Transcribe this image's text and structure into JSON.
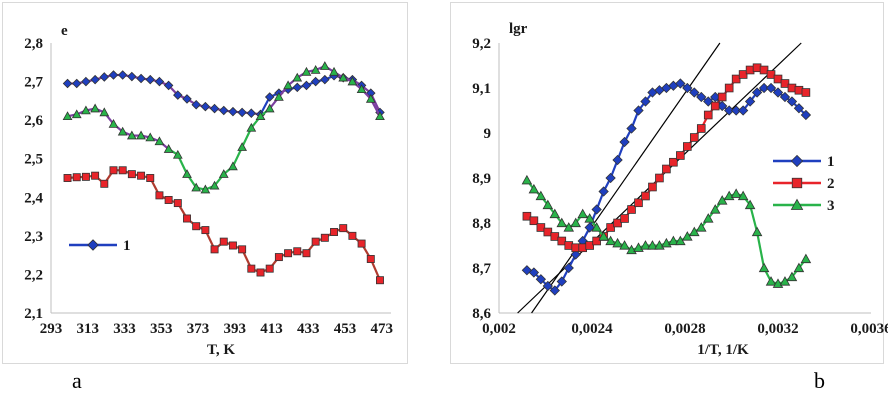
{
  "panels": {
    "a": {
      "letter": "a"
    },
    "b": {
      "letter": "b"
    }
  },
  "colors": {
    "blue": "#1f3fbf",
    "red": "#e8242a",
    "green": "#29b34a",
    "dark_red": "#b03a2e"
  },
  "chart_data": [
    {
      "id": "a",
      "type": "line",
      "ylabel": "e",
      "xlabel": "T, K",
      "xlim": [
        293,
        478
      ],
      "ylim": [
        2.1,
        2.8
      ],
      "x_ticks": [
        293,
        313,
        333,
        353,
        373,
        393,
        413,
        433,
        453,
        473
      ],
      "y_ticks": [
        2.1,
        2.2,
        2.3,
        2.4,
        2.5,
        2.6,
        2.7,
        2.8
      ],
      "x_tick_labels": [
        "293",
        "313",
        "333",
        "353",
        "373",
        "393",
        "413",
        "433",
        "453",
        "473"
      ],
      "y_tick_labels": [
        "2,1",
        "2,2",
        "2,3",
        "2,4",
        "2,5",
        "2,6",
        "2,7",
        "2,8"
      ],
      "grid": false,
      "legend": {
        "position": "lower-left",
        "entries": [
          "1"
        ]
      },
      "series": [
        {
          "name": "1",
          "marker": "diamond",
          "color": "#1f3fbf",
          "line_color": "#7b3fa0",
          "rise_color": "#1f3fbf",
          "x": [
            302,
            307,
            312,
            317,
            322,
            327,
            332,
            337,
            342,
            347,
            352,
            357,
            362,
            367,
            372,
            377,
            382,
            387,
            392,
            397,
            402,
            407,
            412,
            417,
            422,
            427,
            432,
            437,
            442,
            447,
            452,
            457,
            462,
            467,
            472
          ],
          "y": [
            2.695,
            2.695,
            2.7,
            2.705,
            2.712,
            2.717,
            2.717,
            2.713,
            2.708,
            2.705,
            2.7,
            2.69,
            2.665,
            2.655,
            2.64,
            2.635,
            2.63,
            2.625,
            2.622,
            2.62,
            2.618,
            2.615,
            2.66,
            2.67,
            2.68,
            2.685,
            2.69,
            2.7,
            2.705,
            2.715,
            2.71,
            2.705,
            2.69,
            2.67,
            2.62
          ]
        },
        {
          "name": "",
          "marker": "square",
          "color": "#e8242a",
          "line_color": "#b03a2e",
          "x": [
            302,
            307,
            312,
            317,
            322,
            327,
            332,
            337,
            342,
            347,
            352,
            357,
            362,
            367,
            372,
            377,
            382,
            387,
            392,
            397,
            402,
            407,
            412,
            417,
            422,
            427,
            432,
            437,
            442,
            447,
            452,
            457,
            462,
            467,
            472
          ],
          "y": [
            2.45,
            2.452,
            2.453,
            2.456,
            2.435,
            2.47,
            2.47,
            2.46,
            2.456,
            2.45,
            2.405,
            2.393,
            2.385,
            2.345,
            2.325,
            2.315,
            2.265,
            2.285,
            2.275,
            2.265,
            2.215,
            2.205,
            2.215,
            2.245,
            2.255,
            2.26,
            2.255,
            2.285,
            2.295,
            2.31,
            2.32,
            2.3,
            2.28,
            2.24,
            2.185
          ]
        },
        {
          "name": "",
          "marker": "triangle",
          "color": "#29b34a",
          "line_color": "#7b3fa0",
          "fall_color": "#29b34a",
          "x": [
            302,
            307,
            312,
            317,
            322,
            327,
            332,
            337,
            342,
            347,
            352,
            357,
            362,
            367,
            372,
            377,
            382,
            387,
            392,
            397,
            402,
            407,
            412,
            417,
            422,
            427,
            432,
            437,
            442,
            447,
            452,
            457,
            462,
            467,
            472
          ],
          "y": [
            2.61,
            2.615,
            2.625,
            2.63,
            2.62,
            2.59,
            2.57,
            2.56,
            2.56,
            2.555,
            2.545,
            2.525,
            2.51,
            2.46,
            2.425,
            2.42,
            2.43,
            2.46,
            2.48,
            2.53,
            2.58,
            2.61,
            2.63,
            2.66,
            2.69,
            2.71,
            2.725,
            2.73,
            2.74,
            2.725,
            2.71,
            2.7,
            2.68,
            2.655,
            2.61
          ]
        }
      ]
    },
    {
      "id": "b",
      "type": "scatter",
      "ylabel": "lgr",
      "xlabel": "1/T, 1/K",
      "xlim": [
        0.002,
        0.0036
      ],
      "ylim": [
        8.6,
        9.2
      ],
      "x_ticks": [
        0.002,
        0.0024,
        0.0028,
        0.0032,
        0.0036
      ],
      "y_ticks": [
        8.6,
        8.7,
        8.8,
        8.9,
        9.0,
        9.1,
        9.2
      ],
      "x_tick_labels": [
        "0,002",
        "0,0024",
        "0,0028",
        "0,0032",
        "0,0036"
      ],
      "y_tick_labels": [
        "8,6",
        "8,7",
        "8,8",
        "8,9",
        "9",
        "9,1",
        "9,2"
      ],
      "grid": false,
      "legend": {
        "position": "right",
        "entries": [
          "1",
          "2",
          "3"
        ]
      },
      "series": [
        {
          "name": "1",
          "marker": "diamond",
          "color": "#1f3fbf",
          "x": [
            0.00212,
            0.00215,
            0.00218,
            0.00221,
            0.00224,
            0.00227,
            0.0023,
            0.00233,
            0.00236,
            0.00239,
            0.00242,
            0.00245,
            0.00248,
            0.00251,
            0.00254,
            0.00257,
            0.0026,
            0.00263,
            0.00266,
            0.00269,
            0.00272,
            0.00275,
            0.00278,
            0.00281,
            0.00284,
            0.00287,
            0.0029,
            0.00293,
            0.00296,
            0.00299,
            0.00302,
            0.00305,
            0.00308,
            0.00311,
            0.00314,
            0.00317,
            0.0032,
            0.00323,
            0.00326,
            0.00329,
            0.00332
          ],
          "y": [
            8.695,
            8.69,
            8.675,
            8.66,
            8.65,
            8.67,
            8.7,
            8.73,
            8.76,
            8.79,
            8.83,
            8.87,
            8.9,
            8.94,
            8.98,
            9.01,
            9.05,
            9.07,
            9.09,
            9.095,
            9.1,
            9.105,
            9.11,
            9.1,
            9.09,
            9.08,
            9.07,
            9.08,
            9.06,
            9.05,
            9.05,
            9.05,
            9.07,
            9.09,
            9.1,
            9.1,
            9.09,
            9.08,
            9.07,
            9.055,
            9.04
          ]
        },
        {
          "name": "2",
          "marker": "square",
          "color": "#e8242a",
          "x": [
            0.00212,
            0.00215,
            0.00218,
            0.00221,
            0.00224,
            0.00227,
            0.0023,
            0.00233,
            0.00236,
            0.00239,
            0.00242,
            0.00245,
            0.00248,
            0.00251,
            0.00254,
            0.00257,
            0.0026,
            0.00263,
            0.00266,
            0.00269,
            0.00272,
            0.00275,
            0.00278,
            0.00281,
            0.00284,
            0.00287,
            0.0029,
            0.00293,
            0.00296,
            0.00299,
            0.00302,
            0.00305,
            0.00308,
            0.00311,
            0.00314,
            0.00317,
            0.0032,
            0.00323,
            0.00326,
            0.00329,
            0.00332
          ],
          "y": [
            8.815,
            8.805,
            8.79,
            8.78,
            8.77,
            8.76,
            8.75,
            8.745,
            8.745,
            8.75,
            8.76,
            8.77,
            8.79,
            8.8,
            8.81,
            8.83,
            8.845,
            8.86,
            8.88,
            8.9,
            8.92,
            8.935,
            8.95,
            8.97,
            8.99,
            9.01,
            9.04,
            9.06,
            9.08,
            9.1,
            9.12,
            9.13,
            9.14,
            9.145,
            9.14,
            9.13,
            9.12,
            9.11,
            9.1,
            9.095,
            9.09
          ]
        },
        {
          "name": "3",
          "marker": "triangle",
          "color": "#29b34a",
          "line_color": "#29b34a",
          "x": [
            0.00212,
            0.00215,
            0.00218,
            0.00221,
            0.00224,
            0.00227,
            0.0023,
            0.00233,
            0.00236,
            0.00239,
            0.00242,
            0.00245,
            0.00248,
            0.00251,
            0.00254,
            0.00257,
            0.0026,
            0.00263,
            0.00266,
            0.00269,
            0.00272,
            0.00275,
            0.00278,
            0.00281,
            0.00284,
            0.00287,
            0.0029,
            0.00293,
            0.00296,
            0.00299,
            0.00302,
            0.00305,
            0.00308,
            0.00311,
            0.00314,
            0.00317,
            0.0032,
            0.00323,
            0.00326,
            0.00329,
            0.00332
          ],
          "y": [
            8.895,
            8.875,
            8.86,
            8.84,
            8.82,
            8.8,
            8.79,
            8.8,
            8.82,
            8.81,
            8.79,
            8.77,
            8.76,
            8.755,
            8.75,
            8.74,
            8.745,
            8.75,
            8.75,
            8.75,
            8.755,
            8.76,
            8.76,
            8.77,
            8.78,
            8.79,
            8.81,
            8.83,
            8.85,
            8.86,
            8.865,
            8.86,
            8.84,
            8.78,
            8.7,
            8.67,
            8.665,
            8.67,
            8.68,
            8.7,
            8.72
          ]
        }
      ],
      "fit_lines": [
        {
          "x": [
            0.00214,
            0.00295
          ],
          "y": [
            8.6,
            9.2
          ]
        },
        {
          "x": [
            0.00208,
            0.0033
          ],
          "y": [
            8.6,
            9.2
          ]
        }
      ]
    }
  ]
}
